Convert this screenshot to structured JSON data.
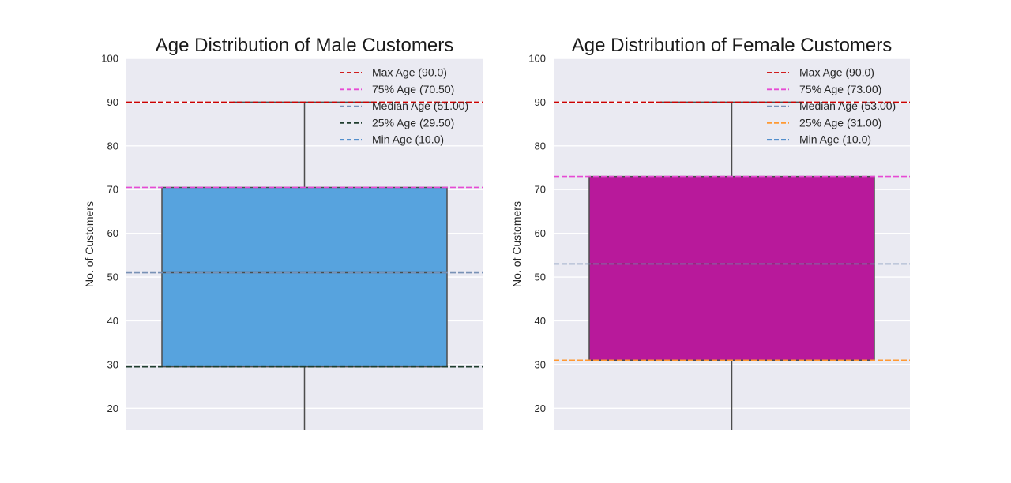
{
  "chart_data": [
    {
      "type": "box",
      "title": "Age Distribution of Male Customers",
      "ylabel": "No. of Customers",
      "xlabel": "",
      "ylim": [
        15,
        100
      ],
      "yticks": [
        20,
        30,
        40,
        50,
        60,
        70,
        80,
        90,
        100
      ],
      "grid": true,
      "legend_position": "top-right",
      "box": {
        "q1": 29.5,
        "median": 51.0,
        "q3": 70.5,
        "whisker_high": 90.0,
        "whisker_low": 10.0,
        "color": "#57a3de"
      },
      "reference_lines": [
        {
          "label": "Max Age (90.0)",
          "value": 90.0,
          "color": "#cc0000"
        },
        {
          "label": "75% Age (70.50)",
          "value": 70.5,
          "color": "#e64ad4"
        },
        {
          "label": "Median Age (51.00)",
          "value": 51.0,
          "color": "#7891b5"
        },
        {
          "label": "25% Age (29.50)",
          "value": 29.5,
          "color": "#1f3d2e"
        },
        {
          "label": "Min Age (10.0)",
          "value": 10.0,
          "color": "#1f6fbf"
        }
      ]
    },
    {
      "type": "box",
      "title": "Age Distribution of Female Customers",
      "ylabel": "No. of Customers",
      "xlabel": "",
      "ylim": [
        15,
        100
      ],
      "yticks": [
        20,
        30,
        40,
        50,
        60,
        70,
        80,
        90,
        100
      ],
      "grid": true,
      "legend_position": "top-right",
      "box": {
        "q1": 31.0,
        "median": 53.0,
        "q3": 73.0,
        "whisker_high": 90.0,
        "whisker_low": 10.0,
        "color": "#b8199b"
      },
      "reference_lines": [
        {
          "label": "Max Age (90.0)",
          "value": 90.0,
          "color": "#cc0000"
        },
        {
          "label": "75% Age (73.00)",
          "value": 73.0,
          "color": "#e64ad4"
        },
        {
          "label": "Median Age (53.00)",
          "value": 53.0,
          "color": "#7891b5"
        },
        {
          "label": "25% Age (31.00)",
          "value": 31.0,
          "color": "#ff9933"
        },
        {
          "label": "Min Age (10.0)",
          "value": 10.0,
          "color": "#1f6fbf"
        }
      ]
    }
  ]
}
